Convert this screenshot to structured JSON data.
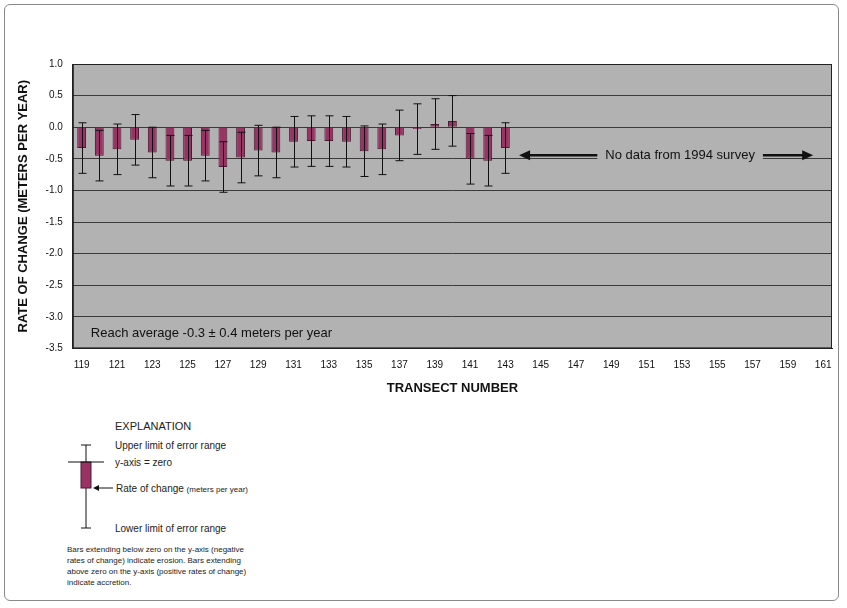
{
  "chart_data": {
    "type": "bar",
    "x_label": "TRANSECT NUMBER",
    "y_label": "RATE OF CHANGE (METERS PER YEAR)",
    "categories": [
      119,
      null,
      121,
      null,
      123,
      null,
      125,
      null,
      127,
      null,
      129,
      null,
      131,
      null,
      133,
      null,
      135,
      null,
      137,
      null,
      139,
      null,
      141,
      null,
      143,
      null,
      145,
      null,
      147,
      null,
      149,
      null,
      151,
      null,
      153,
      null,
      155,
      null,
      157,
      null,
      159,
      null,
      161
    ],
    "values": [
      -0.33,
      -0.45,
      -0.35,
      -0.2,
      -0.4,
      -0.53,
      -0.53,
      -0.45,
      -0.63,
      -0.48,
      -0.37,
      -0.4,
      -0.23,
      -0.22,
      -0.22,
      -0.23,
      -0.38,
      -0.35,
      -0.13,
      -0.03,
      0.05,
      0.1,
      -0.5,
      -0.53,
      -0.33,
      null,
      null,
      null,
      null,
      null,
      null,
      null,
      null,
      null,
      null,
      null,
      null,
      null,
      null,
      null,
      null,
      null,
      null
    ],
    "errors": [
      0.4,
      0.4,
      0.4,
      0.4,
      0.4,
      0.4,
      0.4,
      0.4,
      0.4,
      0.4,
      0.4,
      0.4,
      0.4,
      0.4,
      0.4,
      0.4,
      0.4,
      0.4,
      0.4,
      0.4,
      0.4,
      0.4,
      0.4,
      0.4,
      0.4,
      null,
      null,
      null,
      null,
      null,
      null,
      null,
      null,
      null,
      null,
      null,
      null,
      null,
      null,
      null,
      null,
      null,
      null
    ],
    "color": "#993366",
    "ylim": [
      -3.5,
      1.0
    ],
    "yticks": [
      {
        "value": 1.0,
        "label": "1.0"
      },
      0.5,
      {
        "value": 0.0,
        "label": "0.0"
      },
      -0.5,
      {
        "value": -1.0,
        "label": "-1.0"
      },
      -1.5,
      {
        "value": -2.0,
        "label": "-2.0"
      },
      -2.5,
      {
        "value": -3.0,
        "label": "-3.0"
      },
      -3.5
    ],
    "grid": true,
    "annotations": [
      "No data from 1994 survey",
      "Reach average -0.3 ± 0.4 meters per year"
    ]
  },
  "explanation": {
    "title": "EXPLANATION",
    "upper": "Upper limit of error range",
    "zero": "y-axis = zero",
    "rate": "Rate of change",
    "rate_units": "(meters per year)",
    "lower": "Lower limit of error range",
    "note": [
      "Bars extending below zero on the y-axis  (negative",
      "rates of change) indicate erosion.  Bars extending",
      "above zero on the y-axis (positive rates of change)",
      "indicate accretion."
    ]
  }
}
